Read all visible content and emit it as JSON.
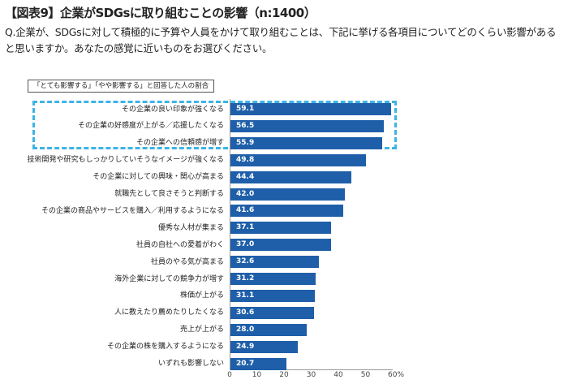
{
  "title": "【図表9】企業がSDGsに取り組むことの影響（n:1400）",
  "question": "Q.企業が、SDGsに対して積極的に予算や人員をかけて取り組むことは、下記に挙げる各項目についてどのくらい影響があると思いますか。あなたの感覚に近いものをお選びください。",
  "legend_label": "「とても影響する」「やや影響する」と回答した人の割合",
  "colors": {
    "bar": "#1f5fa9",
    "highlight": "#3cb4e6"
  },
  "chart_data": {
    "type": "bar",
    "orientation": "horizontal",
    "categories": [
      "その企業の良い印象が強くなる",
      "その企業の好感度が上がる／応援したくなる",
      "その企業への信頼感が増す",
      "技術開発や研究もしっかりしていそうなイメージが強くなる",
      "その企業に対しての興味・関心が高まる",
      "就職先として良さそうと判断する",
      "その企業の商品やサービスを購入／利用するようになる",
      "優秀な人材が集まる",
      "社員の自社への愛着がわく",
      "社員のやる気が高まる",
      "海外企業に対しての競争力が増す",
      "株価が上がる",
      "人に教えたり薦めたりしたくなる",
      "売上が上がる",
      "その企業の株を購入するようになる",
      "いずれも影響しない"
    ],
    "values": [
      59.1,
      56.5,
      55.9,
      49.8,
      44.4,
      42.0,
      41.6,
      37.1,
      37.0,
      32.6,
      31.2,
      31.1,
      30.6,
      28.0,
      24.9,
      20.7
    ],
    "value_labels": [
      "59.1",
      "56.5",
      "55.9",
      "49.8",
      "44.4",
      "42.0",
      "41.6",
      "37.1",
      "37.0",
      "32.6",
      "31.2",
      "31.1",
      "30.6",
      "28.0",
      "24.9",
      "20.7"
    ],
    "xlim": [
      0,
      60
    ],
    "ticks": [
      "0",
      "10",
      "20",
      "30",
      "40",
      "50",
      "60%"
    ],
    "tick_values": [
      0,
      10,
      20,
      30,
      40,
      50,
      60
    ],
    "highlighted_count": 3
  }
}
